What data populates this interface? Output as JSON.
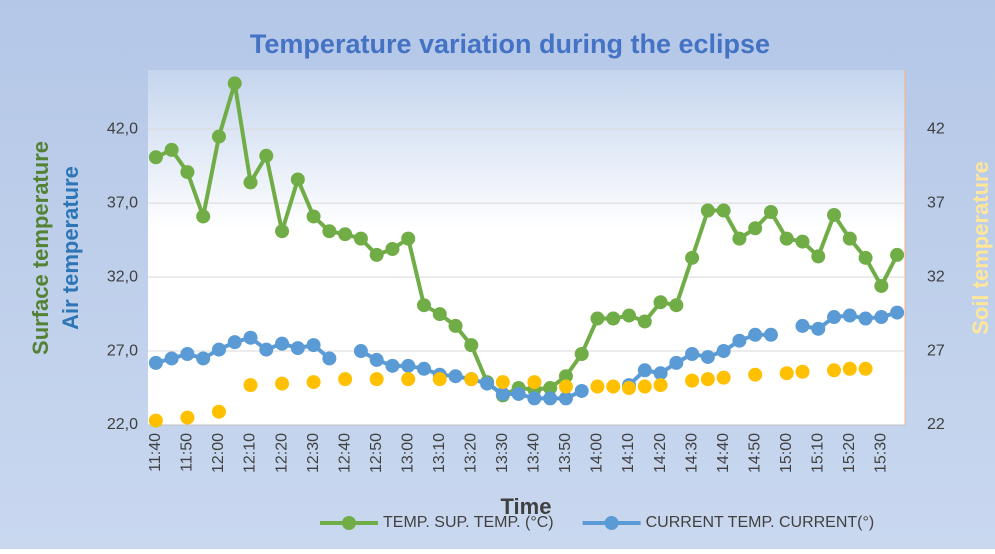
{
  "chart_data": {
    "type": "line",
    "title": "Temperature variation during the eclipse",
    "x_label": "Time",
    "y_labels": [
      "Surface temperature",
      "Air temperature"
    ],
    "y2_label": "Soil temperature",
    "categories": [
      "11:40",
      null,
      "11:50",
      null,
      "12:00",
      null,
      "12:10",
      null,
      "12:20",
      null,
      "12:30",
      null,
      "12:40",
      null,
      "12:50",
      null,
      "13:00",
      null,
      "13:10",
      null,
      "13:20",
      null,
      "13:30",
      null,
      "13:40",
      null,
      "13:50",
      null,
      "14:00",
      null,
      "14:10",
      null,
      "14:20",
      null,
      "14:30",
      null,
      "14:40",
      null,
      "14:50",
      null,
      "15:00",
      null,
      "15:10",
      null,
      "15:20",
      null,
      "15:30",
      null
    ],
    "series": [
      {
        "name": "TEMP. SUP. TEMP. (°C)",
        "color": "#70ad47",
        "line": true,
        "values": [
          40.1,
          40.6,
          39.1,
          36.1,
          41.5,
          45.1,
          38.4,
          40.2,
          35.1,
          38.6,
          36.1,
          35.1,
          34.9,
          34.6,
          33.5,
          33.9,
          34.6,
          30.1,
          29.5,
          28.7,
          27.4,
          24.9,
          24.0,
          24.5,
          24.4,
          24.5,
          25.3,
          26.8,
          29.2,
          29.2,
          29.4,
          29.0,
          30.3,
          30.1,
          33.3,
          36.5,
          36.5,
          34.6,
          35.3,
          36.4,
          34.6,
          34.4,
          33.4,
          36.2,
          34.6,
          33.3,
          31.4,
          33.5
        ]
      },
      {
        "name": "CURRENT TEMP. CURRENT(°)",
        "color": "#5b9bd5",
        "line": true,
        "values": [
          26.2,
          26.5,
          26.8,
          26.5,
          27.1,
          27.6,
          27.9,
          27.1,
          27.5,
          27.2,
          27.4,
          26.5,
          null,
          27.0,
          26.4,
          26.0,
          26.0,
          25.8,
          25.4,
          25.3,
          25.1,
          24.8,
          24.1,
          24.1,
          23.8,
          23.8,
          23.8,
          24.3,
          null,
          null,
          24.7,
          25.7,
          25.5,
          26.2,
          26.8,
          26.6,
          27.0,
          27.7,
          28.1,
          28.1,
          null,
          28.7,
          28.5,
          29.3,
          29.4,
          29.2,
          29.3,
          29.6
        ]
      },
      {
        "color": "#ffc000",
        "line": false,
        "axis": "y2",
        "values": [
          22.3,
          null,
          22.5,
          null,
          22.9,
          null,
          24.7,
          null,
          24.8,
          null,
          24.9,
          null,
          25.1,
          null,
          25.1,
          null,
          25.1,
          null,
          25.1,
          null,
          25.1,
          null,
          24.9,
          null,
          24.9,
          null,
          24.6,
          null,
          24.6,
          24.6,
          24.5,
          24.6,
          24.7,
          null,
          25.0,
          25.1,
          25.2,
          null,
          25.4,
          null,
          25.5,
          25.6,
          null,
          25.7,
          25.8,
          25.8,
          null,
          null
        ]
      }
    ],
    "ylim": [
      22,
      46
    ],
    "yticks": [
      {
        "value": 22,
        "label": "22,0"
      },
      {
        "value": 27,
        "label": "27,0"
      },
      {
        "value": 32,
        "label": "32,0"
      },
      {
        "value": 37,
        "label": "37,0"
      },
      {
        "value": 42,
        "label": "42,0"
      }
    ],
    "y2lim": [
      22,
      46
    ],
    "y2ticks": [
      22,
      27,
      32,
      37,
      42
    ],
    "grid": true,
    "legend": "bottom"
  }
}
